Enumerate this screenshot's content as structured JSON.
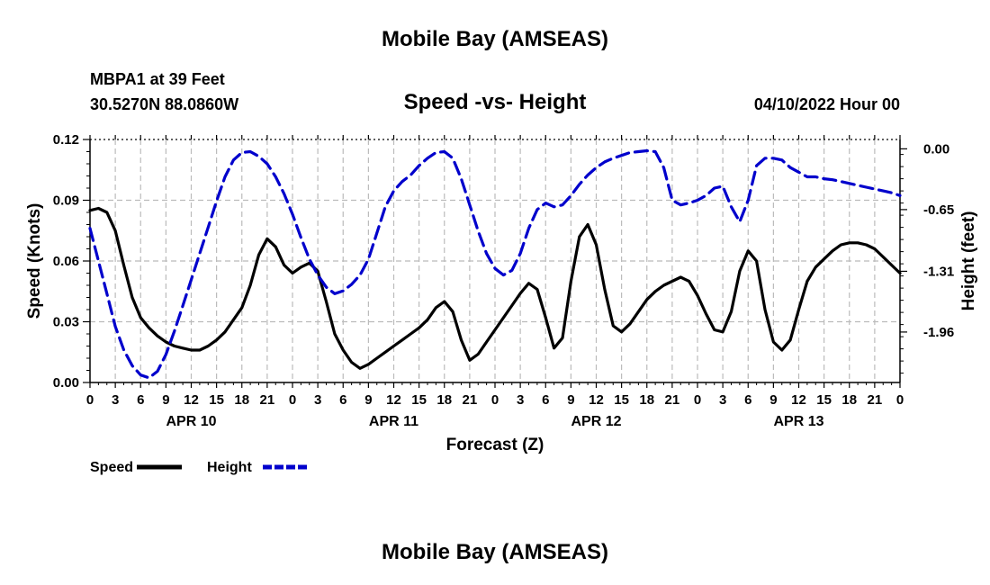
{
  "header": {
    "title": "Mobile Bay (AMSEAS)",
    "station": "MBPA1 at 39 Feet",
    "coords": "30.5270N  88.0860W",
    "datetime": "04/10/2022 Hour 00"
  },
  "footer": {
    "title": "Mobile Bay (AMSEAS)"
  },
  "chart_data": {
    "type": "line",
    "title": "Speed -vs- Height",
    "xlabel": "Forecast (Z)",
    "ylabel": "Speed (Knots)",
    "y2label": "Height (feet)",
    "xlim": [
      0,
      96
    ],
    "ylim": [
      0,
      0.12
    ],
    "y2lim": [
      -2.5,
      0.1
    ],
    "x_ticks": [
      0,
      3,
      6,
      9,
      12,
      15,
      18,
      21,
      24,
      27,
      30,
      33,
      36,
      39,
      42,
      45,
      48,
      51,
      54,
      57,
      60,
      63,
      66,
      69,
      72,
      75,
      78,
      81,
      84,
      87,
      90,
      93,
      96
    ],
    "x_tick_labels": [
      "0",
      "3",
      "6",
      "9",
      "12",
      "15",
      "18",
      "21",
      "0",
      "3",
      "6",
      "9",
      "12",
      "15",
      "18",
      "21",
      "0",
      "3",
      "6",
      "9",
      "12",
      "15",
      "18",
      "21",
      "0",
      "3",
      "6",
      "9",
      "12",
      "15",
      "18",
      "21",
      "0"
    ],
    "y_ticks": [
      0,
      0.03,
      0.06,
      0.09,
      0.12
    ],
    "y_tick_labels": [
      "0.00",
      "0.03",
      "0.06",
      "0.09",
      "0.12"
    ],
    "y2_ticks": [
      0.0,
      -0.65,
      -1.31,
      -1.96
    ],
    "y2_tick_labels": [
      "0.00",
      "-0.65",
      "-1.31",
      "-1.96"
    ],
    "day_labels": [
      {
        "x": 12,
        "label": "APR 10"
      },
      {
        "x": 36,
        "label": "APR 11"
      },
      {
        "x": 60,
        "label": "APR 12"
      },
      {
        "x": 84,
        "label": "APR 13"
      }
    ],
    "grid": true,
    "series": [
      {
        "name": "Speed",
        "axis": "left",
        "color": "#000000",
        "dash": "solid",
        "x": [
          0,
          1,
          2,
          3,
          4,
          5,
          6,
          7,
          8,
          9,
          10,
          11,
          12,
          13,
          14,
          15,
          16,
          17,
          18,
          19,
          20,
          21,
          22,
          23,
          24,
          25,
          26,
          27,
          28,
          29,
          30,
          31,
          32,
          33,
          34,
          35,
          36,
          37,
          38,
          39,
          40,
          41,
          42,
          43,
          44,
          45,
          46,
          47,
          48,
          49,
          50,
          51,
          52,
          53,
          54,
          55,
          56,
          57,
          58,
          59,
          60,
          61,
          62,
          63,
          64,
          65,
          66,
          67,
          68,
          69,
          70,
          71,
          72,
          73,
          74,
          75,
          76,
          77,
          78,
          79,
          80,
          81,
          82,
          83,
          84,
          85,
          86,
          87,
          88,
          89,
          90,
          91,
          92,
          93,
          94,
          95,
          96
        ],
        "values": [
          0.085,
          0.086,
          0.084,
          0.075,
          0.058,
          0.042,
          0.032,
          0.027,
          0.023,
          0.02,
          0.018,
          0.017,
          0.016,
          0.016,
          0.018,
          0.021,
          0.025,
          0.031,
          0.037,
          0.048,
          0.063,
          0.071,
          0.067,
          0.058,
          0.054,
          0.057,
          0.059,
          0.055,
          0.04,
          0.024,
          0.016,
          0.01,
          0.007,
          0.009,
          0.012,
          0.015,
          0.018,
          0.021,
          0.024,
          0.027,
          0.031,
          0.037,
          0.04,
          0.035,
          0.021,
          0.011,
          0.014,
          0.02,
          0.026,
          0.032,
          0.038,
          0.044,
          0.049,
          0.046,
          0.032,
          0.017,
          0.022,
          0.05,
          0.072,
          0.078,
          0.068,
          0.046,
          0.028,
          0.025,
          0.029,
          0.035,
          0.041,
          0.045,
          0.048,
          0.05,
          0.052,
          0.05,
          0.043,
          0.034,
          0.026,
          0.025,
          0.035,
          0.055,
          0.065,
          0.06,
          0.036,
          0.02,
          0.016,
          0.021,
          0.036,
          0.05,
          0.057,
          0.061,
          0.065,
          0.068,
          0.069,
          0.069,
          0.068,
          0.066,
          0.062,
          0.058,
          0.054
        ]
      },
      {
        "name": "Height",
        "axis": "right",
        "color": "#0000cc",
        "dash": "dashed",
        "x": [
          0,
          1,
          2,
          3,
          4,
          5,
          6,
          7,
          8,
          9,
          10,
          11,
          12,
          13,
          14,
          15,
          16,
          17,
          18,
          19,
          20,
          21,
          22,
          23,
          24,
          25,
          26,
          27,
          28,
          29,
          30,
          31,
          32,
          33,
          34,
          35,
          36,
          37,
          38,
          39,
          40,
          41,
          42,
          43,
          44,
          45,
          46,
          47,
          48,
          49,
          50,
          51,
          52,
          53,
          54,
          55,
          56,
          57,
          58,
          59,
          60,
          61,
          62,
          63,
          64,
          65,
          66,
          67,
          68,
          69,
          70,
          71,
          72,
          73,
          74,
          75,
          76,
          77,
          78,
          79,
          80,
          81,
          82,
          83,
          84,
          85,
          86,
          87,
          88,
          89,
          90,
          91,
          92,
          93,
          94,
          95,
          96
        ],
        "values": [
          -0.85,
          -1.2,
          -1.55,
          -1.9,
          -2.15,
          -2.32,
          -2.42,
          -2.45,
          -2.38,
          -2.2,
          -1.95,
          -1.68,
          -1.4,
          -1.12,
          -0.84,
          -0.56,
          -0.3,
          -0.12,
          -0.04,
          -0.03,
          -0.08,
          -0.16,
          -0.3,
          -0.48,
          -0.7,
          -0.95,
          -1.18,
          -1.35,
          -1.48,
          -1.55,
          -1.52,
          -1.45,
          -1.35,
          -1.18,
          -0.9,
          -0.62,
          -0.45,
          -0.35,
          -0.28,
          -0.18,
          -0.1,
          -0.04,
          -0.03,
          -0.1,
          -0.32,
          -0.6,
          -0.88,
          -1.12,
          -1.28,
          -1.35,
          -1.3,
          -1.12,
          -0.85,
          -0.65,
          -0.58,
          -0.62,
          -0.6,
          -0.5,
          -0.38,
          -0.28,
          -0.2,
          -0.14,
          -0.1,
          -0.07,
          -0.04,
          -0.03,
          -0.02,
          -0.03,
          -0.2,
          -0.55,
          -0.6,
          -0.58,
          -0.55,
          -0.5,
          -0.42,
          -0.4,
          -0.62,
          -0.78,
          -0.55,
          -0.18,
          -0.1,
          -0.1,
          -0.12,
          -0.2,
          -0.25,
          -0.3,
          -0.3,
          -0.32,
          -0.33,
          -0.35,
          -0.37,
          -0.39,
          -0.41,
          -0.43,
          -0.45,
          -0.47,
          -0.5
        ]
      }
    ],
    "legend": [
      {
        "label": "Speed",
        "color": "#000000",
        "dash": "solid"
      },
      {
        "label": "Height",
        "color": "#0000cc",
        "dash": "dashed"
      }
    ],
    "legend_position": "bottom-left"
  }
}
